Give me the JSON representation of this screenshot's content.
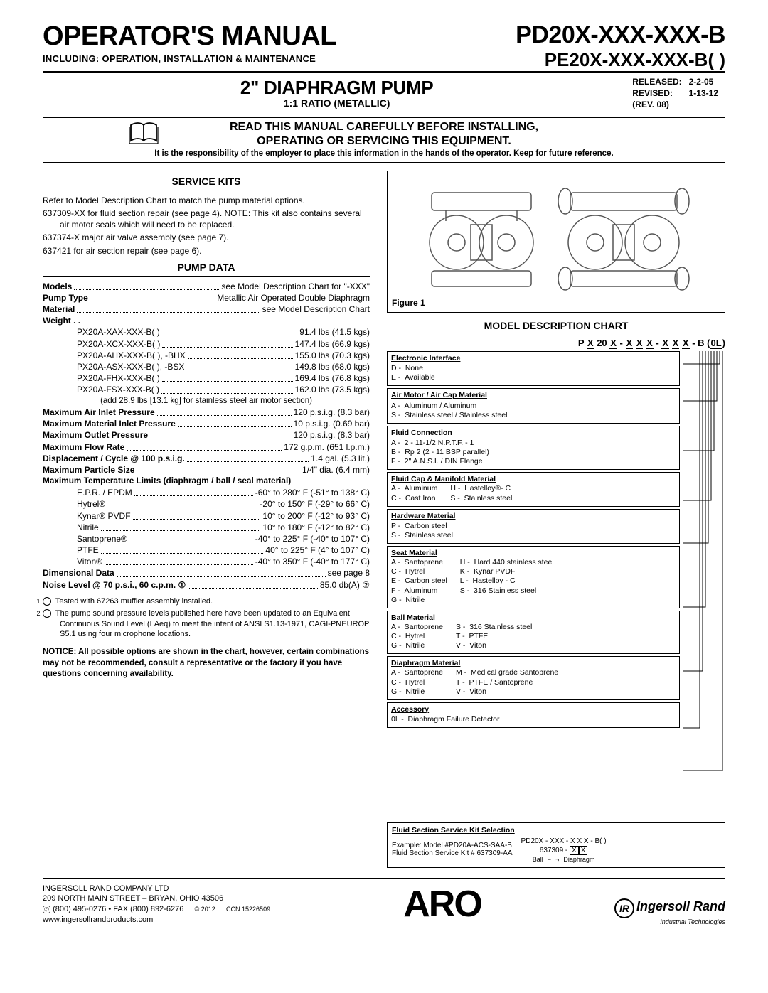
{
  "header": {
    "title": "OPERATOR'S MANUAL",
    "subtitle": "INCLUDING: OPERATION, INSTALLATION & MAINTENANCE",
    "model1": "PD20X-XXX-XXX-B",
    "model2": "PE20X-XXX-XXX-B( )",
    "released_lbl": "RELEASED:",
    "released_val": "2-2-05",
    "revised_lbl": "REVISED:",
    "revised_val": "1-13-12",
    "rev": "(REV. 08)"
  },
  "title2": {
    "main": "2\" DIAPHRAGM PUMP",
    "ratio": "1:1 RATIO (METALLIC)"
  },
  "warn": {
    "line1": "READ THIS MANUAL CAREFULLY BEFORE INSTALLING,",
    "line2": "OPERATING OR SERVICING THIS EQUIPMENT.",
    "small": "It is the responsibility of the employer to place this information in the hands of the operator. Keep for future reference."
  },
  "serviceKits": {
    "heading": "SERVICE KITS",
    "p1": "Refer to Model Description Chart to match the pump material options.",
    "p2": "637309-XX for fluid section repair (see page 4). NOTE: This kit also contains several air motor seals which will need to be replaced.",
    "p3": "637374-X major air valve assembly (see page 7).",
    "p4": "637421 for air section repair (see page 6)."
  },
  "pumpData": {
    "heading": "PUMP DATA",
    "rows": [
      {
        "lbl": "Models",
        "val": "see Model Description Chart for \"-XXX\""
      },
      {
        "lbl": "Pump Type",
        "val": "Metallic Air Operated Double Diaphragm"
      },
      {
        "lbl": "Material",
        "val": "see Model Description Chart"
      }
    ],
    "weight_lbl": "Weight . .",
    "weights": [
      {
        "m": "PX20A-XAX-XXX-B( )",
        "v": "91.4 lbs (41.5 kgs)"
      },
      {
        "m": "PX20A-XCX-XXX-B( )",
        "v": "147.4 lbs (66.9 kgs)"
      },
      {
        "m": "PX20A-AHX-XXX-B( ), -BHX",
        "v": "155.0 lbs (70.3 kgs)"
      },
      {
        "m": "PX20A-ASX-XXX-B( ), -BSX",
        "v": "149.8 lbs (68.0 kgs)"
      },
      {
        "m": "PX20A-FHX-XXX-B( )",
        "v": "169.4 lbs (76.8 kgs)"
      },
      {
        "m": "PX20A-FSX-XXX-B( )",
        "v": "162.0 lbs (73.5 kgs)"
      }
    ],
    "weight_note": "(add 28.9 lbs [13.1 kg] for stainless steel air motor section)",
    "specs": [
      {
        "lbl": "Maximum Air Inlet Pressure",
        "val": "120 p.s.i.g. (8.3 bar)"
      },
      {
        "lbl": "Maximum Material Inlet Pressure",
        "val": "10 p.s.i.g. (0.69 bar)"
      },
      {
        "lbl": "Maximum Outlet Pressure",
        "val": "120 p.s.i.g. (8.3 bar)"
      },
      {
        "lbl": "Maximum Flow Rate",
        "val": "172 g.p.m. (651 l.p.m.)"
      },
      {
        "lbl": "Displacement / Cycle @ 100 p.s.i.g.",
        "val": "1.4 gal. (5.3 lit.)"
      },
      {
        "lbl": "Maximum Particle Size",
        "val": "1/4\" dia. (6.4 mm)"
      }
    ],
    "temp_hdr": "Maximum Temperature Limits (diaphragm / ball / seal material)",
    "temps": [
      {
        "m": "E.P.R. / EPDM",
        "v": "-60° to 280° F (-51° to 138° C)"
      },
      {
        "m": "Hytrel®",
        "v": "-20° to 150° F (-29° to 66° C)"
      },
      {
        "m": "Kynar® PVDF",
        "v": "10° to 200° F (-12° to 93° C)"
      },
      {
        "m": "Nitrile",
        "v": "10° to 180° F (-12° to 82° C)"
      },
      {
        "m": "Santoprene®",
        "v": "-40° to 225° F (-40° to 107° C)"
      },
      {
        "m": "PTFE",
        "v": "40° to 225° F (4° to 107° C)"
      },
      {
        "m": "Viton®",
        "v": "-40° to 350° F (-40° to 177° C)"
      }
    ],
    "dim": {
      "lbl": "Dimensional Data",
      "val": "see page 8"
    },
    "noise": {
      "lbl": "Noise Level @ 70 p.s.i., 60 c.p.m. ①",
      "val": "85.0 db(A) ②"
    },
    "note1": "Tested with 67263 muffler assembly installed.",
    "note2": "The pump sound pressure levels published here have been updated to an Equivalent Continuous Sound Level (LAeq) to meet the intent of ANSI S1.13-1971, CAGI-PNEUROP S5.1 using four microphone locations.",
    "notice": "NOTICE: All possible options are shown in the chart, however, certain combinations may not be recommended, consult a representative or the factory if you have questions concerning availability."
  },
  "figure": {
    "label": "Figure 1"
  },
  "mdc": {
    "heading": "MODEL DESCRIPTION CHART",
    "code": "P X 20 X - X X X - X X X - B (0L)",
    "boxes": [
      {
        "t": "Electronic Interface",
        "opts": [
          [
            "D -",
            "None"
          ],
          [
            "E -",
            "Available"
          ]
        ]
      },
      {
        "t": "Air Motor / Air Cap Material",
        "opts": [
          [
            "A -",
            "Aluminum / Aluminum"
          ],
          [
            "S -",
            "Stainless steel / Stainless steel"
          ]
        ]
      },
      {
        "t": "Fluid Connection",
        "opts": [
          [
            "A -",
            "2 - 11-1/2 N.P.T.F. - 1"
          ],
          [
            "B -",
            "Rp 2 (2 - 11 BSP parallel)"
          ],
          [
            "F -",
            "2\" A.N.S.I. / DIN Flange"
          ]
        ]
      },
      {
        "t": "Fluid Cap & Manifold Material",
        "opts2": [
          [
            [
              "A -",
              "Aluminum"
            ],
            [
              "C -",
              "Cast Iron"
            ]
          ],
          [
            [
              "H -",
              "Hastelloy®- C"
            ],
            [
              "S -",
              "Stainless steel"
            ]
          ]
        ]
      },
      {
        "t": "Hardware Material",
        "opts": [
          [
            "P -",
            "Carbon steel"
          ],
          [
            "S -",
            "Stainless steel"
          ]
        ]
      },
      {
        "t": "Seat Material",
        "opts2": [
          [
            [
              "A -",
              "Santoprene"
            ],
            [
              "C -",
              "Hytrel"
            ],
            [
              "E -",
              "Carbon steel"
            ],
            [
              "F -",
              "Aluminum"
            ],
            [
              "G -",
              "Nitrile"
            ]
          ],
          [
            [
              "H -",
              "Hard 440 stainless steel"
            ],
            [
              "K -",
              "Kynar PVDF"
            ],
            [
              "L -",
              "Hastelloy - C"
            ],
            [
              "S -",
              "316 Stainless steel"
            ]
          ]
        ]
      },
      {
        "t": "Ball Material",
        "opts2": [
          [
            [
              "A -",
              "Santoprene"
            ],
            [
              "C -",
              "Hytrel"
            ],
            [
              "G -",
              "Nitrile"
            ]
          ],
          [
            [
              "S -",
              "316 Stainless steel"
            ],
            [
              "T -",
              "PTFE"
            ],
            [
              "V -",
              "Viton"
            ]
          ]
        ]
      },
      {
        "t": "Diaphragm Material",
        "opts2": [
          [
            [
              "A -",
              "Santoprene"
            ],
            [
              "C -",
              "Hytrel"
            ],
            [
              "G -",
              "Nitrile"
            ]
          ],
          [
            [
              "M -",
              "Medical grade Santoprene"
            ],
            [
              "T -",
              "PTFE / Santoprene"
            ],
            [
              "V -",
              "Viton"
            ]
          ]
        ]
      },
      {
        "t": "Accessory",
        "opts": [
          [
            "0L -",
            "Diaphragm Failure Detector"
          ]
        ]
      }
    ],
    "svc": {
      "t": "Fluid Section Service Kit Selection",
      "ex1": "Example: Model #PD20A-ACS-SAA-B",
      "ex2": "Fluid Section Service Kit # 637309-AA",
      "r1": "PD20X - XXX - X X X - B( )",
      "r2": "637309 - X X",
      "r3a": "Ball",
      "r3b": "Diaphragm"
    }
  },
  "footer": {
    "company": "INGERSOLL RAND COMPANY LTD",
    "addr": "209 NORTH MAIN STREET – BRYAN, OHIO 43506",
    "phone": "(800) 495-0276 • FAX (800) 892-6276",
    "copy": "© 2012",
    "ccn": "CCN 15226509",
    "web": "www.ingersollrandproducts.com",
    "aro": "ARO",
    "brand": "Ingersoll Rand",
    "tag": "Industrial Technologies"
  }
}
